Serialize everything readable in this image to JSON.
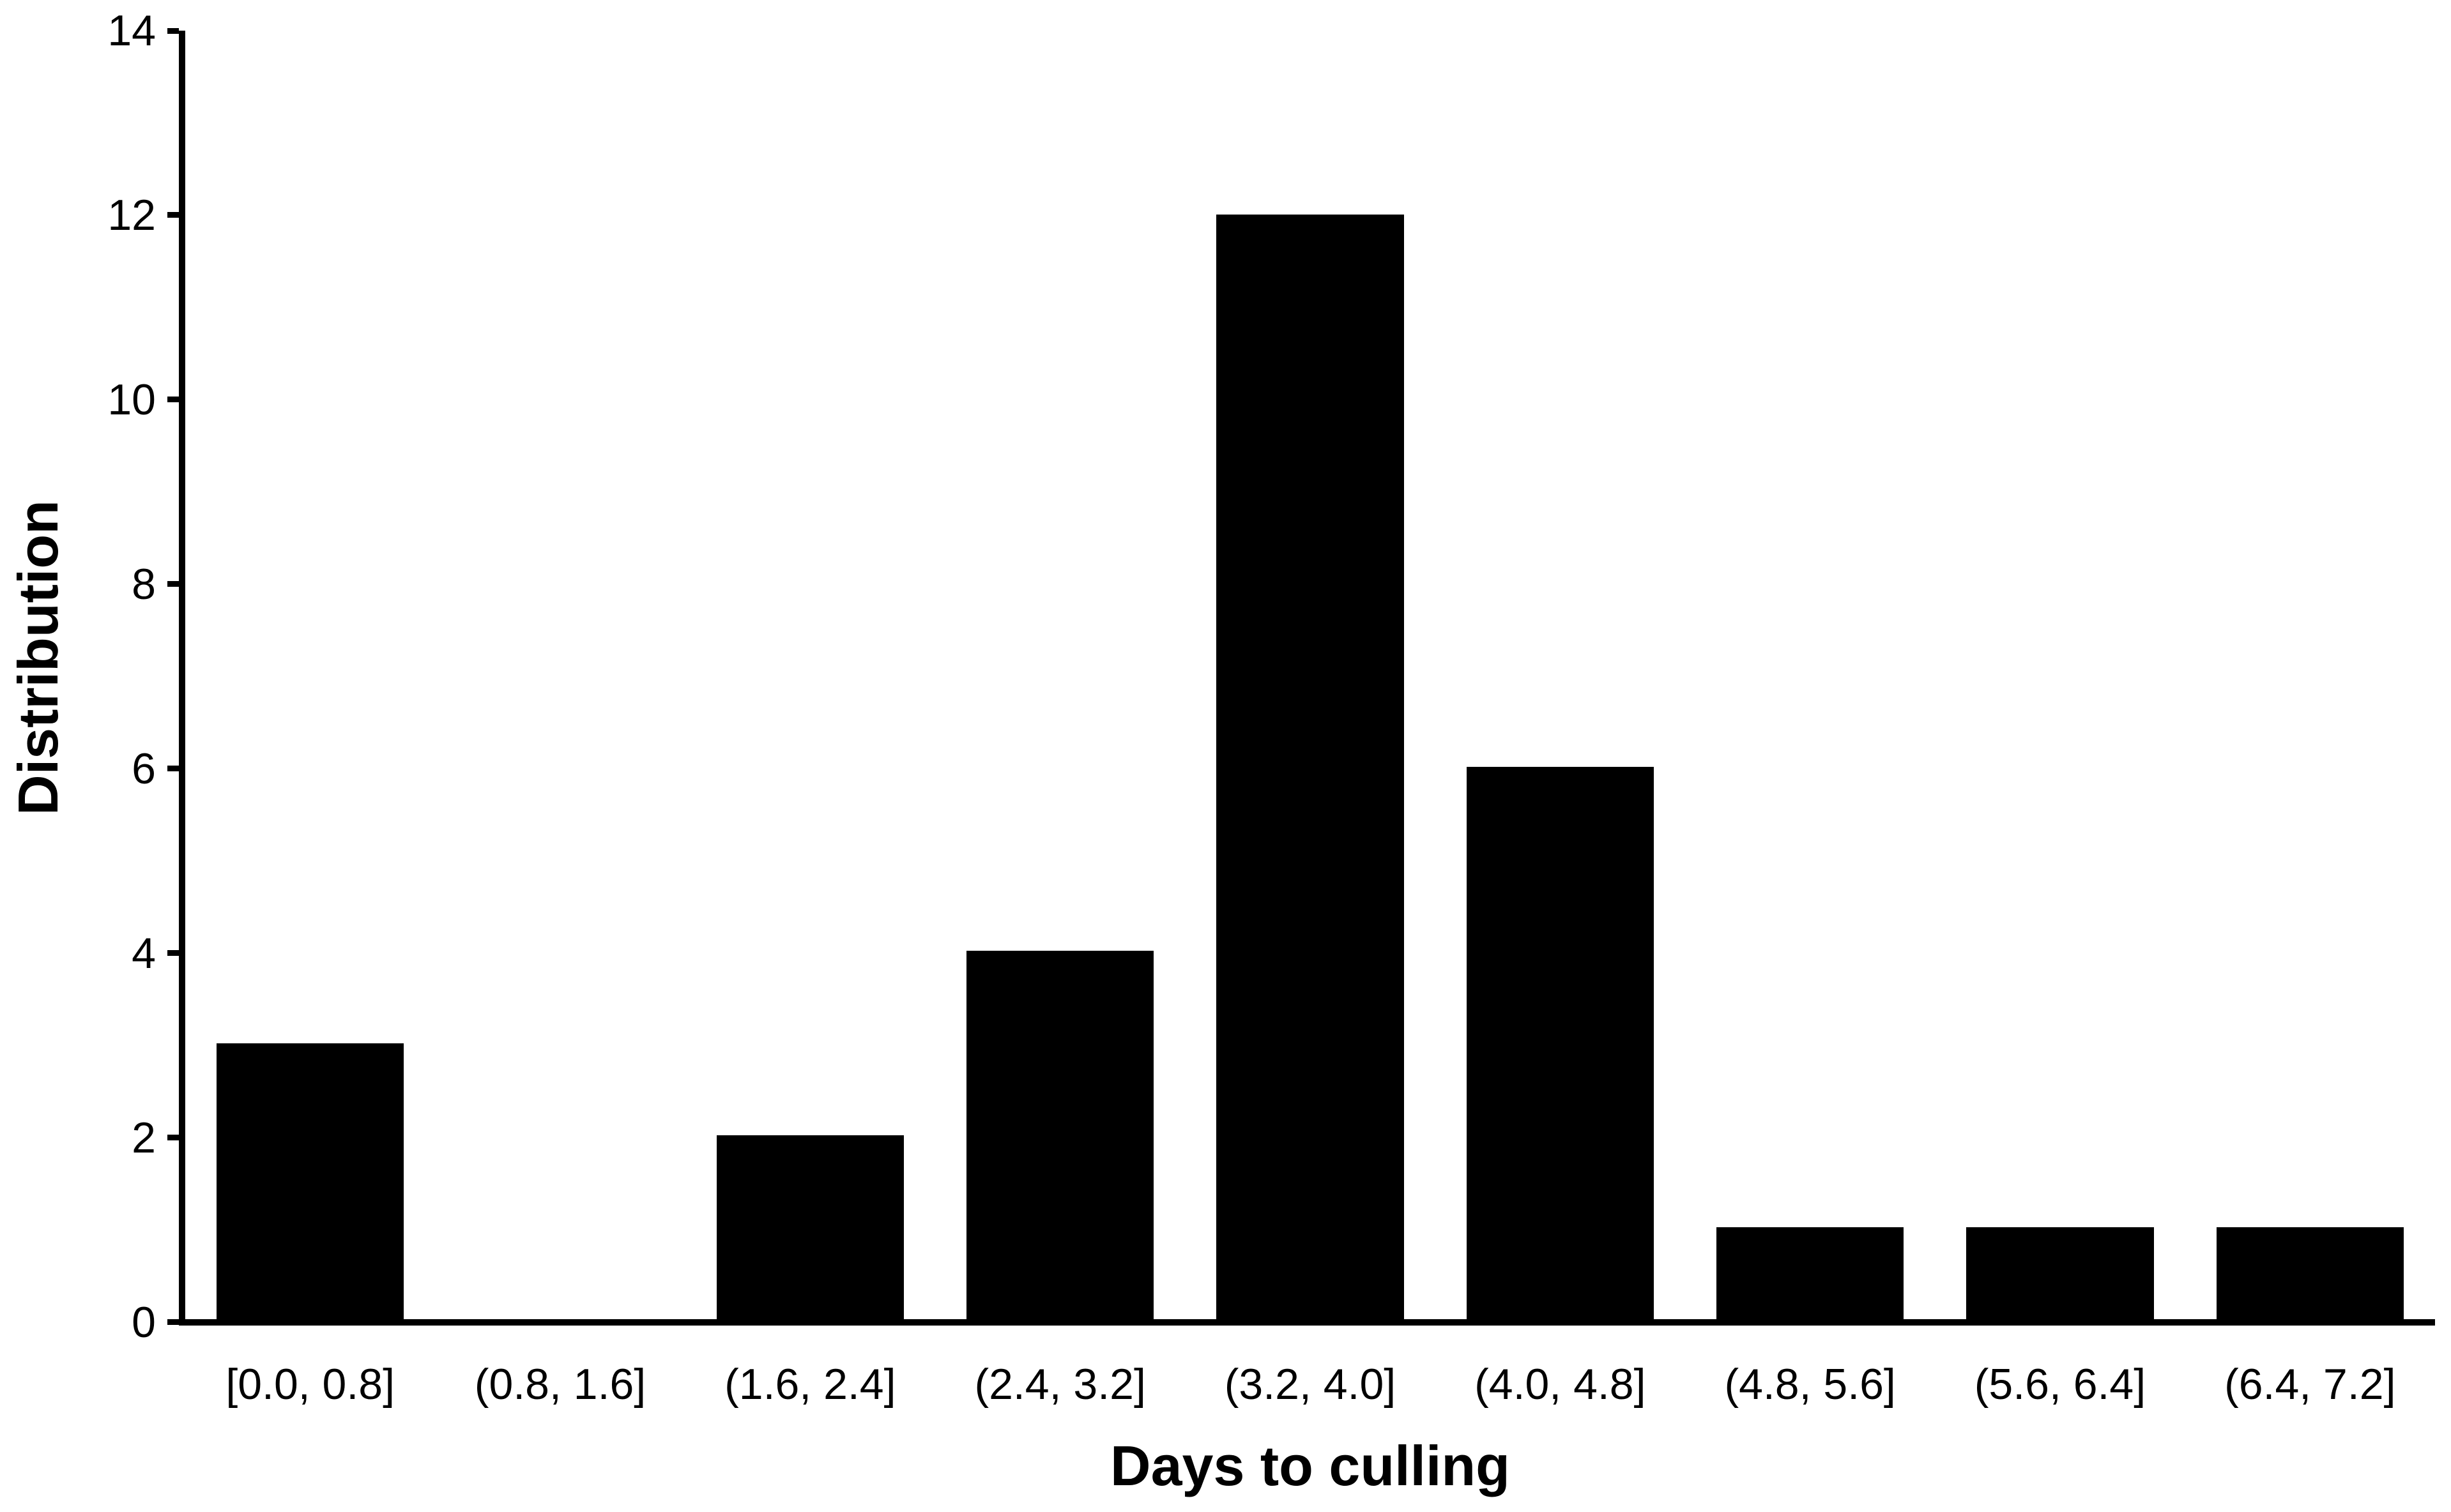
{
  "figure": {
    "background_color": "#ffffff",
    "bar_color": "#000000",
    "axis_color": "#000000",
    "text_color": "#000000"
  },
  "chart_data": {
    "type": "bar",
    "title": "",
    "xlabel": "Days to culling",
    "ylabel": "Distribution",
    "categories": [
      "[0.0, 0.8]",
      "(0.8, 1.6]",
      "(1.6, 2.4]",
      "(2.4, 3.2]",
      "(3.2, 4.0]",
      "(4.0, 4.8]",
      "(4.8, 5.6]",
      "(5.6, 6.4]",
      "(6.4, 7.2]"
    ],
    "values": [
      3,
      0,
      2,
      4,
      12,
      6,
      1,
      1,
      1
    ],
    "ylim": [
      0,
      14
    ],
    "yticks": [
      0,
      2,
      4,
      6,
      8,
      10,
      12,
      14
    ],
    "grid": false,
    "legend_position": "none",
    "bar_gap_fraction": 0.25
  }
}
